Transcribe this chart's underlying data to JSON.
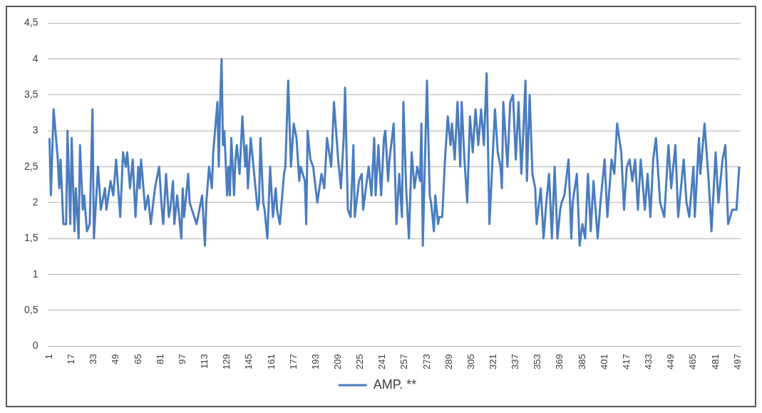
{
  "chart_data": {
    "type": "line",
    "xlim": [
      0,
      499
    ],
    "xticks": [
      1,
      17,
      33,
      49,
      65,
      81,
      97,
      113,
      129,
      145,
      161,
      177,
      193,
      209,
      225,
      241,
      257,
      273,
      289,
      305,
      321,
      337,
      353,
      369,
      385,
      401,
      417,
      433,
      449,
      465,
      481,
      497
    ],
    "ylim": [
      0,
      4.5
    ],
    "yticks": [
      0,
      {
        "value": 0.5,
        "label": "0,5"
      },
      1,
      {
        "value": 1.5,
        "label": "1,5"
      },
      2,
      {
        "value": 2.5,
        "label": "2,5"
      },
      3,
      {
        "value": 3.5,
        "label": "3,5"
      },
      4,
      {
        "value": 4.5,
        "label": "4,5"
      }
    ],
    "grid": "y",
    "legend": "bottom",
    "marker": "none",
    "line_style": "solid",
    "series": [
      {
        "name": "AMP. **",
        "color": "#4a7dbf",
        "x": [
          1,
          2,
          4,
          7,
          8,
          9,
          11,
          13,
          14,
          16,
          17,
          19,
          20,
          22,
          23,
          25,
          26,
          28,
          30,
          32,
          33,
          36,
          38,
          41,
          42,
          45,
          47,
          49,
          52,
          54,
          56,
          57,
          59,
          61,
          63,
          65,
          66,
          67,
          70,
          72,
          74,
          77,
          80,
          82,
          83,
          85,
          87,
          88,
          90,
          91,
          93,
          96,
          97,
          98,
          101,
          102,
          107,
          111,
          113,
          114,
          116,
          118,
          119,
          122,
          123,
          124,
          125,
          126,
          127,
          129,
          130,
          131,
          132,
          134,
          135,
          136,
          138,
          140,
          142,
          143,
          144,
          146,
          148,
          151,
          152,
          153,
          155,
          156,
          158,
          160,
          162,
          164,
          165,
          167,
          170,
          171,
          173,
          175,
          177,
          179,
          181,
          182,
          185,
          186,
          187,
          189,
          191,
          194,
          197,
          199,
          201,
          204,
          206,
          209,
          211,
          213,
          214,
          216,
          218,
          220,
          221,
          224,
          226,
          227,
          231,
          233,
          235,
          236,
          238,
          240,
          242,
          243,
          245,
          246,
          249,
          251,
          253,
          255,
          256,
          258,
          260,
          262,
          264,
          266,
          268,
          269,
          270,
          273,
          275,
          276,
          278,
          279,
          281,
          282,
          284,
          286,
          288,
          290,
          291,
          293,
          295,
          297,
          298,
          300,
          302,
          304,
          306,
          308,
          310,
          312,
          314,
          316,
          318,
          322,
          324,
          326,
          327,
          328,
          331,
          333,
          335,
          337,
          339,
          341,
          342,
          344,
          345,
          347,
          349,
          351,
          352,
          355,
          357,
          359,
          361,
          363,
          365,
          367,
          369,
          370,
          372,
          375,
          377,
          378,
          381,
          383,
          385,
          387,
          389,
          391,
          393,
          396,
          398,
          401,
          403,
          406,
          408,
          410,
          413,
          415,
          417,
          419,
          421,
          423,
          425,
          427,
          430,
          432,
          434,
          436,
          438,
          441,
          444,
          447,
          449,
          452,
          454,
          458,
          460,
          462,
          465,
          466,
          469,
          470,
          473,
          476,
          478,
          481,
          483,
          486,
          488,
          490,
          493,
          496,
          498
        ],
        "values": [
          2.9,
          2.1,
          3.3,
          2.6,
          2.2,
          2.6,
          1.7,
          1.7,
          3.0,
          1.7,
          2.9,
          1.6,
          2.2,
          1.5,
          2.8,
          1.9,
          2.1,
          1.6,
          1.7,
          3.3,
          1.5,
          2.5,
          1.9,
          2.2,
          1.9,
          2.3,
          2.1,
          2.6,
          1.8,
          2.7,
          2.5,
          2.7,
          2.2,
          2.6,
          1.8,
          2.5,
          2.2,
          2.6,
          1.9,
          2.1,
          1.7,
          2.2,
          2.5,
          1.9,
          1.7,
          2.4,
          1.8,
          1.9,
          2.3,
          1.7,
          2.1,
          1.5,
          2.2,
          1.8,
          2.4,
          2.0,
          1.7,
          2.1,
          1.4,
          2.0,
          2.5,
          2.2,
          2.7,
          3.4,
          2.5,
          3.4,
          4.0,
          2.8,
          3.0,
          2.1,
          2.5,
          2.1,
          2.9,
          2.1,
          2.6,
          2.8,
          2.4,
          3.2,
          2.5,
          2.8,
          2.2,
          2.9,
          2.5,
          1.9,
          2.0,
          2.9,
          2.0,
          1.9,
          1.5,
          2.5,
          1.8,
          2.2,
          1.9,
          1.7,
          2.4,
          2.5,
          3.7,
          2.5,
          3.1,
          2.9,
          2.3,
          2.5,
          2.3,
          1.7,
          3.0,
          2.6,
          2.5,
          2.0,
          2.4,
          2.2,
          2.9,
          2.5,
          3.4,
          2.6,
          2.2,
          2.9,
          3.6,
          1.9,
          1.8,
          2.8,
          1.8,
          2.3,
          2.4,
          1.9,
          2.5,
          2.1,
          2.9,
          2.1,
          2.8,
          2.1,
          2.9,
          3.0,
          2.3,
          2.6,
          3.1,
          1.7,
          2.4,
          1.8,
          3.4,
          2.2,
          1.5,
          2.7,
          2.2,
          2.5,
          2.3,
          3.1,
          1.4,
          3.7,
          2.1,
          2.0,
          1.6,
          2.1,
          1.7,
          1.8,
          1.8,
          2.6,
          3.2,
          2.8,
          3.1,
          2.6,
          3.4,
          2.5,
          3.4,
          2.6,
          2.0,
          3.2,
          2.7,
          3.3,
          2.8,
          3.3,
          2.8,
          3.8,
          1.7,
          3.3,
          2.7,
          2.5,
          2.2,
          3.4,
          2.5,
          3.4,
          3.5,
          2.6,
          3.4,
          2.4,
          2.8,
          3.7,
          2.3,
          3.5,
          2.4,
          2.2,
          1.7,
          2.2,
          1.5,
          2.0,
          2.4,
          1.5,
          2.5,
          1.5,
          1.9,
          2.0,
          2.1,
          2.6,
          1.5,
          2.0,
          2.4,
          1.4,
          1.7,
          1.5,
          2.4,
          1.6,
          2.3,
          1.5,
          2.0,
          2.6,
          1.8,
          2.6,
          2.4,
          3.1,
          2.7,
          1.9,
          2.5,
          2.6,
          2.3,
          2.6,
          1.9,
          2.6,
          1.9,
          2.4,
          1.8,
          2.6,
          2.9,
          2.0,
          1.8,
          2.8,
          2.2,
          2.8,
          1.8,
          2.6,
          2.0,
          1.8,
          2.5,
          1.8,
          2.9,
          2.4,
          3.1,
          2.3,
          1.6,
          2.7,
          2.0,
          2.6,
          2.8,
          1.7,
          1.9,
          1.9,
          2.5
        ]
      }
    ]
  }
}
